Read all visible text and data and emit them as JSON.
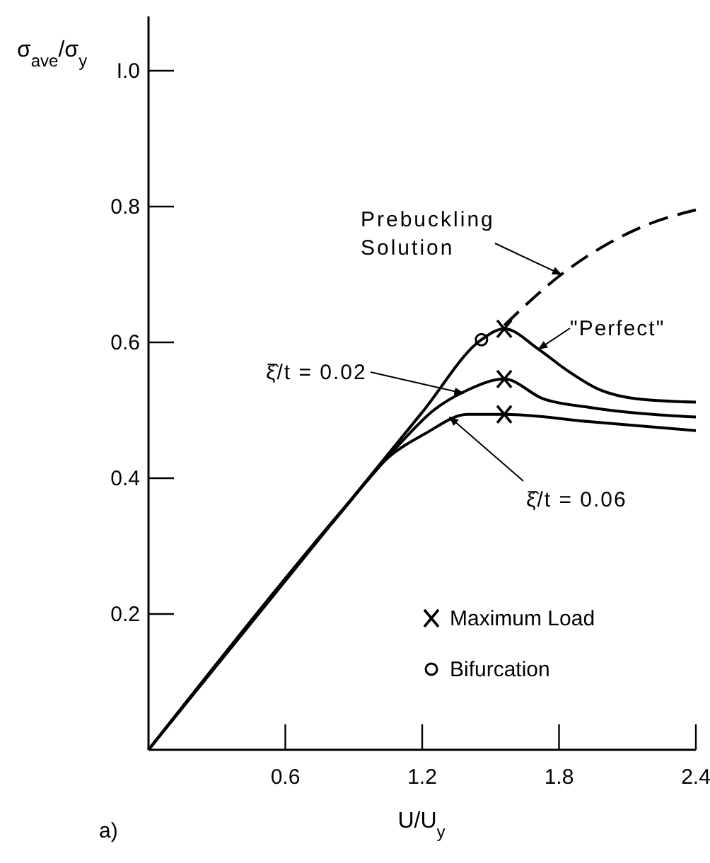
{
  "chart_data": {
    "type": "line",
    "xlabel": "U/U$_{y}$",
    "ylabel": "σ$_{ave}$/σ$_{y}$",
    "xlim": [
      0,
      2.4
    ],
    "ylim": [
      0,
      1.08
    ],
    "xticks": [
      0.6,
      1.2,
      1.8,
      2.4
    ],
    "yticks": [
      0.2,
      0.4,
      0.6,
      0.8,
      {
        "value": 1.0,
        "label": "I.0"
      }
    ],
    "grid": false,
    "legend": "bottom right",
    "series": [
      {
        "color": "#000000",
        "line_style": "solid",
        "marker": "none",
        "x": [
          0,
          0.88,
          1.2,
          1.46,
          1.56,
          1.71,
          1.83,
          1.98,
          2.14,
          2.4
        ],
        "values": [
          0,
          0.365,
          0.497,
          0.604,
          0.62,
          0.59,
          0.56,
          0.53,
          0.517,
          0.512
        ]
      },
      {
        "color": "#000000",
        "line_style": "dashed",
        "marker": "none",
        "x": [
          1.56,
          1.81,
          2.04,
          2.2,
          2.4
        ],
        "values": [
          0.625,
          0.7,
          0.75,
          0.775,
          0.795
        ]
      },
      {
        "color": "#000000",
        "line_style": "solid",
        "marker": "none",
        "x": [
          0,
          0.88,
          1.1,
          1.25,
          1.4,
          1.56,
          1.73,
          1.94,
          2.4
        ],
        "values": [
          0,
          0.365,
          0.45,
          0.5,
          0.53,
          0.546,
          0.517,
          0.504,
          0.49
        ]
      },
      {
        "color": "#000000",
        "line_style": "solid",
        "marker": "none",
        "x": [
          0,
          0.85,
          1.05,
          1.21,
          1.4,
          1.56,
          1.94,
          2.4
        ],
        "values": [
          0,
          0.352,
          0.43,
          0.465,
          0.494,
          0.494,
          0.483,
          0.47
        ]
      },
      {
        "type": "scatter",
        "name": "Maximum Load",
        "color": "#000000",
        "marker": "cross",
        "x": [
          1.56,
          1.56,
          1.56
        ],
        "values": [
          0.62,
          0.546,
          0.494
        ]
      },
      {
        "type": "scatter",
        "name": "Bifurcation",
        "color": "#000000",
        "marker": "circle",
        "x": [
          1.46
        ],
        "values": [
          0.604
        ]
      }
    ],
    "annotations": [
      {
        "text": "Prebuckling Solution",
        "x": 1.81,
        "y": 0.7
      },
      {
        "text": "\"Perfect\"",
        "x": 1.71,
        "y": 0.59
      },
      {
        "text": "ξ̂/t = 0.02",
        "x": 1.38,
        "y": 0.525
      },
      {
        "text": "ξ̂/t = 0.06",
        "x": 1.32,
        "y": 0.49
      },
      "a)"
    ]
  }
}
